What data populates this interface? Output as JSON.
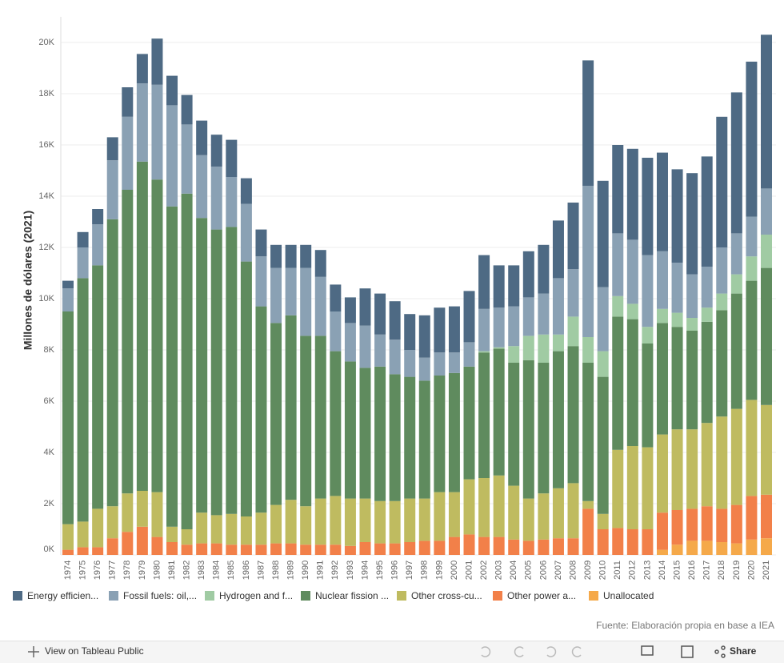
{
  "chart_data": {
    "type": "stacked-bar",
    "y_label": "Millones de dólares (2021)",
    "source": "Fuente: Elaboración propia en base a IEA",
    "categories": [
      "1974",
      "1975",
      "1976",
      "1977",
      "1978",
      "1979",
      "1980",
      "1981",
      "1982",
      "1983",
      "1984",
      "1985",
      "1986",
      "1987",
      "1988",
      "1989",
      "1990",
      "1991",
      "1992",
      "1993",
      "1994",
      "1995",
      "1996",
      "1997",
      "1998",
      "1999",
      "2000",
      "2001",
      "2002",
      "2003",
      "2004",
      "2005",
      "2006",
      "2007",
      "2008",
      "2009",
      "2010",
      "2011",
      "2012",
      "2013",
      "2014",
      "2015",
      "2016",
      "2017",
      "2018",
      "2019",
      "2020",
      "2021"
    ],
    "ylim": [
      0,
      21000
    ],
    "yticks": [
      {
        "value": 0,
        "label": "0K"
      },
      {
        "value": 2000,
        "label": "2K"
      },
      {
        "value": 4000,
        "label": "4K"
      },
      {
        "value": 6000,
        "label": "6K"
      },
      {
        "value": 8000,
        "label": "8K"
      },
      {
        "value": 10000,
        "label": "10K"
      },
      {
        "value": 12000,
        "label": "12K"
      },
      {
        "value": 14000,
        "label": "14K"
      },
      {
        "value": 16000,
        "label": "16K"
      },
      {
        "value": 18000,
        "label": "18K"
      },
      {
        "value": 20000,
        "label": "20K"
      }
    ],
    "grid": true,
    "legend": "bottom",
    "series": [
      {
        "name": "Energy efficien...",
        "color": "#4e6a84",
        "values": [
          300,
          600,
          600,
          900,
          1150,
          1150,
          1800,
          1150,
          1150,
          1350,
          1250,
          1450,
          1000,
          1050,
          900,
          900,
          900,
          1050,
          1050,
          1000,
          1450,
          1600,
          1500,
          1400,
          1650,
          1750,
          1800,
          2000,
          2100,
          1650,
          1600,
          1800,
          1900,
          2250,
          2600,
          4900,
          4150,
          3450,
          3550,
          3800,
          3850,
          3650,
          3950,
          4300,
          5100,
          5500,
          6050,
          6000
        ]
      },
      {
        "name": "Fossil fuels: oil,...",
        "color": "#8aa1b4",
        "values": [
          900,
          1200,
          1600,
          2300,
          2850,
          3050,
          3700,
          3950,
          2700,
          2450,
          2450,
          1950,
          2250,
          1950,
          2150,
          1850,
          2650,
          2300,
          1550,
          1500,
          1650,
          1250,
          1350,
          1050,
          900,
          900,
          800,
          950,
          1650,
          1550,
          1550,
          1500,
          1600,
          2200,
          1850,
          5900,
          2500,
          2450,
          2500,
          2800,
          2250,
          1950,
          1700,
          1600,
          1800,
          1600,
          1550,
          1800
        ]
      },
      {
        "name": "Hydrogen and f...",
        "color": "#a0cba3",
        "values": [
          0,
          0,
          0,
          0,
          0,
          0,
          0,
          0,
          0,
          0,
          0,
          0,
          0,
          0,
          0,
          0,
          0,
          0,
          0,
          0,
          0,
          0,
          0,
          0,
          0,
          0,
          0,
          0,
          50,
          50,
          650,
          950,
          1100,
          650,
          1150,
          1000,
          1000,
          800,
          600,
          650,
          550,
          550,
          500,
          550,
          650,
          750,
          950,
          1300
        ]
      },
      {
        "name": "Nuclear fission ...",
        "color": "#5f8b5e",
        "values": [
          8300,
          9500,
          9500,
          11200,
          11850,
          12850,
          12200,
          12500,
          13100,
          11500,
          11150,
          11200,
          9950,
          8050,
          7100,
          7200,
          6650,
          6350,
          5650,
          5350,
          5100,
          5250,
          4950,
          4750,
          4600,
          4550,
          4650,
          4400,
          4900,
          4950,
          4800,
          5400,
          5100,
          5350,
          5350,
          5400,
          5350,
          5200,
          4950,
          4050,
          4350,
          4000,
          3850,
          3950,
          4150,
          4500,
          4650,
          5350
        ]
      },
      {
        "name": "Other cross-cu...",
        "color": "#bfbb60",
        "values": [
          1000,
          1000,
          1500,
          1250,
          1500,
          1400,
          1750,
          600,
          600,
          1200,
          1100,
          1200,
          1100,
          1250,
          1500,
          1700,
          1500,
          1800,
          1900,
          1850,
          1700,
          1650,
          1650,
          1700,
          1650,
          1900,
          1750,
          2150,
          2300,
          2400,
          2100,
          1650,
          1800,
          1950,
          2150,
          300,
          600,
          3050,
          3250,
          3200,
          3050,
          3150,
          3100,
          3250,
          3600,
          3750,
          3750,
          3500
        ]
      },
      {
        "name": "Other power a...",
        "color": "#f28049",
        "values": [
          200,
          300,
          300,
          650,
          900,
          1100,
          700,
          500,
          400,
          450,
          450,
          400,
          400,
          400,
          450,
          450,
          400,
          400,
          400,
          350,
          500,
          450,
          450,
          500,
          550,
          550,
          700,
          800,
          700,
          700,
          600,
          550,
          600,
          650,
          650,
          1800,
          1000,
          1050,
          1000,
          1000,
          1450,
          1350,
          1250,
          1350,
          1300,
          1500,
          1700,
          1700
        ]
      },
      {
        "name": "Unallocated",
        "color": "#f5a94a",
        "values": [
          0,
          0,
          0,
          0,
          0,
          0,
          0,
          0,
          0,
          0,
          0,
          0,
          0,
          0,
          0,
          0,
          0,
          0,
          0,
          0,
          0,
          0,
          0,
          0,
          0,
          0,
          0,
          0,
          0,
          0,
          0,
          0,
          0,
          0,
          0,
          0,
          0,
          0,
          0,
          0,
          200,
          400,
          550,
          550,
          500,
          450,
          600,
          650
        ]
      }
    ]
  },
  "toolbar": {
    "view": "View on Tableau Public",
    "share": "Share"
  }
}
